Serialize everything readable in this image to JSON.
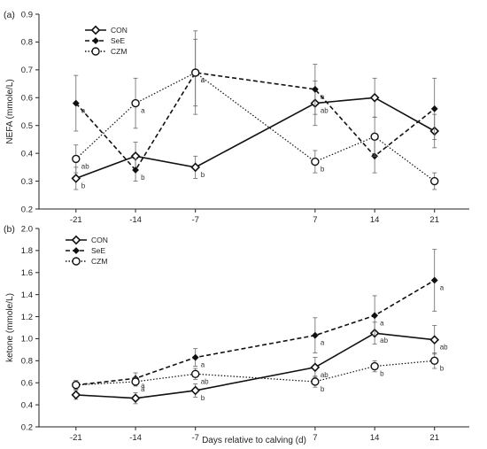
{
  "chart_data": {
    "type": "line",
    "xlabel": "Days relative to calving (d)",
    "x": [
      -21,
      -14,
      -7,
      7,
      14,
      21
    ],
    "panels": [
      {
        "id": "a",
        "label": "(a)",
        "ylabel": "NEFA (mmole/L)",
        "ylim": [
          0.2,
          0.9
        ],
        "yticks": [
          "0.2",
          "0.3",
          "0.4",
          "0.5",
          "0.6",
          "0.7",
          "0.8",
          "0.9"
        ],
        "series": [
          {
            "name": "CON",
            "style": "solid",
            "marker": "diamond-open",
            "values": [
              0.31,
              0.39,
              0.35,
              0.58,
              0.6,
              0.48
            ],
            "err": [
              0.04,
              0.05,
              0.04,
              0.08,
              0.07,
              0.06
            ],
            "letters": [
              "b",
              "",
              "b",
              "ab",
              "",
              ""
            ]
          },
          {
            "name": "SeE",
            "style": "dashed",
            "marker": "diamond-filled",
            "values": [
              0.58,
              0.34,
              0.69,
              0.63,
              0.39,
              0.56
            ],
            "err": [
              0.1,
              0.04,
              0.15,
              0.09,
              0.06,
              0.11
            ],
            "letters": [
              "a",
              "b",
              "a",
              "a",
              "",
              ""
            ]
          },
          {
            "name": "CZM",
            "style": "dotted",
            "marker": "circle-open",
            "values": [
              0.38,
              0.58,
              0.69,
              0.37,
              0.46,
              0.3
            ],
            "err": [
              0.05,
              0.09,
              0.12,
              0.04,
              0.07,
              0.03
            ],
            "letters": [
              "ab",
              "a",
              "a",
              "b",
              "",
              ""
            ]
          }
        ]
      },
      {
        "id": "b",
        "label": "(b)",
        "ylabel": "ketone (mmole/L)",
        "ylim": [
          0.2,
          2.0
        ],
        "yticks": [
          "0.2",
          "0.4",
          "0.6",
          "0.8",
          "1.0",
          "1.2",
          "1.4",
          "1.6",
          "1.8",
          "2.0"
        ],
        "series": [
          {
            "name": "CON",
            "style": "solid",
            "marker": "diamond-open",
            "values": [
              0.49,
              0.46,
              0.53,
              0.74,
              1.05,
              0.99
            ],
            "err": [
              0.04,
              0.05,
              0.06,
              0.09,
              0.1,
              0.13
            ],
            "letters": [
              "",
              "",
              "b",
              "ab",
              "ab",
              "ab"
            ]
          },
          {
            "name": "SeE",
            "style": "dashed",
            "marker": "diamond-filled",
            "values": [
              0.58,
              0.64,
              0.83,
              1.03,
              1.21,
              1.53
            ],
            "err": [
              0.04,
              0.05,
              0.08,
              0.16,
              0.18,
              0.28
            ],
            "letters": [
              "",
              "a",
              "a",
              "a",
              "a",
              "a"
            ]
          },
          {
            "name": "CZM",
            "style": "dotted",
            "marker": "circle-open",
            "values": [
              0.58,
              0.61,
              0.68,
              0.61,
              0.75,
              0.8
            ],
            "err": [
              0.04,
              0.04,
              0.05,
              0.05,
              0.05,
              0.07
            ],
            "letters": [
              "",
              "a",
              "ab",
              "b",
              "b",
              "b"
            ]
          }
        ]
      }
    ],
    "xticks": [
      "-21",
      "-14",
      "-7",
      "7",
      "14",
      "21"
    ],
    "legend": {
      "position": "top-left",
      "entries": [
        "CON",
        "SeE",
        "CZM"
      ]
    },
    "grid": false
  }
}
